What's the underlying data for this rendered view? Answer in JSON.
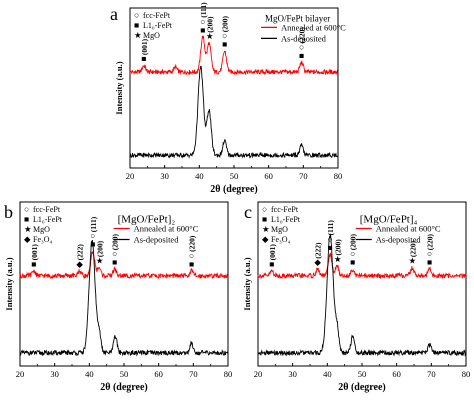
{
  "chart_data": [
    {
      "panel_letter": "a",
      "type": "line",
      "title": "MgO/FePt bilayer",
      "xlabel": "2θ (degree)",
      "ylabel": "Intensity (a.u.)",
      "xlim": [
        20,
        80
      ],
      "x_ticks": [
        "20",
        "30",
        "40",
        "50",
        "60",
        "70",
        "80"
      ],
      "marker_legend": [
        {
          "symbol": "○",
          "label": "fcc-FePt"
        },
        {
          "symbol": "■",
          "label": "L1₀-FePt"
        },
        {
          "symbol": "★",
          "label": "MgO"
        }
      ],
      "series": [
        {
          "name": "Annealed at 600°C",
          "color": "#ff0000",
          "baseline": 0.6,
          "peaks": [
            {
              "x": 24.0,
              "h": 0.04
            },
            {
              "x": 33.1,
              "h": 0.03
            },
            {
              "x": 41.0,
              "h": 0.22
            },
            {
              "x": 42.8,
              "h": 0.18
            },
            {
              "x": 47.3,
              "h": 0.13
            },
            {
              "x": 69.5,
              "h": 0.06
            }
          ]
        },
        {
          "name": "As-deposited",
          "color": "#000000",
          "baseline": 0.08,
          "peaks": [
            {
              "x": 40.4,
              "h": 0.55
            },
            {
              "x": 42.8,
              "h": 0.28
            },
            {
              "x": 47.3,
              "h": 0.09
            },
            {
              "x": 69.5,
              "h": 0.06
            }
          ]
        }
      ],
      "peak_labels": [
        {
          "x": 24.0,
          "symbols": "■",
          "hkl": "(001)"
        },
        {
          "x": 41.0,
          "symbols": "○■",
          "hkl": "(111)"
        },
        {
          "x": 43.0,
          "symbols": "★",
          "hkl": "(200)"
        },
        {
          "x": 47.3,
          "symbols": "○■",
          "hkl": "(200)"
        },
        {
          "x": 69.5,
          "symbols": "○■",
          "hkl": "(220)"
        }
      ]
    },
    {
      "panel_letter": "b",
      "type": "line",
      "title": "[MgO/FePt]₂",
      "xlabel": "2θ (degree)",
      "ylabel": "Intensity (a.u.)",
      "xlim": [
        20,
        80
      ],
      "x_ticks": [
        "20",
        "30",
        "40",
        "50",
        "60",
        "70",
        "80"
      ],
      "marker_legend": [
        {
          "symbol": "○",
          "label": "fcc-FePt"
        },
        {
          "symbol": "■",
          "label": "L1₀-FePt"
        },
        {
          "symbol": "★",
          "label": "MgO"
        },
        {
          "symbol": "◆",
          "label": "Fe₃O₄"
        }
      ],
      "series": [
        {
          "name": "Annealed at 600°C",
          "color": "#ff0000",
          "baseline": 0.55,
          "peaks": [
            {
              "x": 24.0,
              "h": 0.03
            },
            {
              "x": 37.2,
              "h": 0.03
            },
            {
              "x": 41.0,
              "h": 0.15
            },
            {
              "x": 42.8,
              "h": 0.05
            },
            {
              "x": 47.3,
              "h": 0.04
            },
            {
              "x": 69.5,
              "h": 0.03
            }
          ]
        },
        {
          "name": "As-deposited",
          "color": "#000000",
          "baseline": 0.08,
          "peaks": [
            {
              "x": 40.8,
              "h": 0.68
            },
            {
              "x": 42.8,
              "h": 0.12
            },
            {
              "x": 47.5,
              "h": 0.1
            },
            {
              "x": 69.5,
              "h": 0.06
            }
          ]
        }
      ],
      "peak_labels": [
        {
          "x": 24.0,
          "symbols": "■",
          "hkl": "(001)"
        },
        {
          "x": 37.2,
          "symbols": "◆",
          "hkl": "(222)"
        },
        {
          "x": 41.0,
          "symbols": "○■",
          "hkl": "(111)"
        },
        {
          "x": 43.0,
          "symbols": "★",
          "hkl": "(200)"
        },
        {
          "x": 47.3,
          "symbols": "○■",
          "hkl": "(200)"
        },
        {
          "x": 69.5,
          "symbols": "○■",
          "hkl": "(220)"
        }
      ]
    },
    {
      "panel_letter": "c",
      "type": "line",
      "title": "[MgO/FePt]₄",
      "xlabel": "2θ (degree)",
      "ylabel": "Intensity (a.u.)",
      "xlim": [
        20,
        80
      ],
      "x_ticks": [
        "20",
        "30",
        "40",
        "50",
        "60",
        "70",
        "80"
      ],
      "marker_legend": [
        {
          "symbol": "○",
          "label": "fcc-FePt"
        },
        {
          "symbol": "■",
          "label": "L1₀-FePt"
        },
        {
          "symbol": "★",
          "label": "MgO"
        },
        {
          "symbol": "◆",
          "label": "Fe₃O₄"
        }
      ],
      "series": [
        {
          "name": "Annealed at 600°C",
          "color": "#ff0000",
          "baseline": 0.55,
          "peaks": [
            {
              "x": 24.0,
              "h": 0.03
            },
            {
              "x": 37.2,
              "h": 0.04
            },
            {
              "x": 40.8,
              "h": 0.13
            },
            {
              "x": 42.8,
              "h": 0.06
            },
            {
              "x": 47.3,
              "h": 0.04
            },
            {
              "x": 64.5,
              "h": 0.05
            },
            {
              "x": 69.5,
              "h": 0.04
            }
          ]
        },
        {
          "name": "As-deposited",
          "color": "#000000",
          "baseline": 0.08,
          "peaks": [
            {
              "x": 40.8,
              "h": 0.72
            },
            {
              "x": 42.8,
              "h": 0.14
            },
            {
              "x": 47.3,
              "h": 0.1
            },
            {
              "x": 69.5,
              "h": 0.05
            }
          ]
        }
      ],
      "peak_labels": [
        {
          "x": 24.0,
          "symbols": "■",
          "hkl": "(001)"
        },
        {
          "x": 37.2,
          "symbols": "◆",
          "hkl": "(222)"
        },
        {
          "x": 40.8,
          "symbols": "○■",
          "hkl": "(111)"
        },
        {
          "x": 43.0,
          "symbols": "★",
          "hkl": "(200)"
        },
        {
          "x": 47.3,
          "symbols": "○■",
          "hkl": "(200)"
        },
        {
          "x": 64.5,
          "symbols": "★",
          "hkl": "(220)"
        },
        {
          "x": 69.5,
          "symbols": "○■",
          "hkl": "(220)"
        }
      ]
    }
  ]
}
